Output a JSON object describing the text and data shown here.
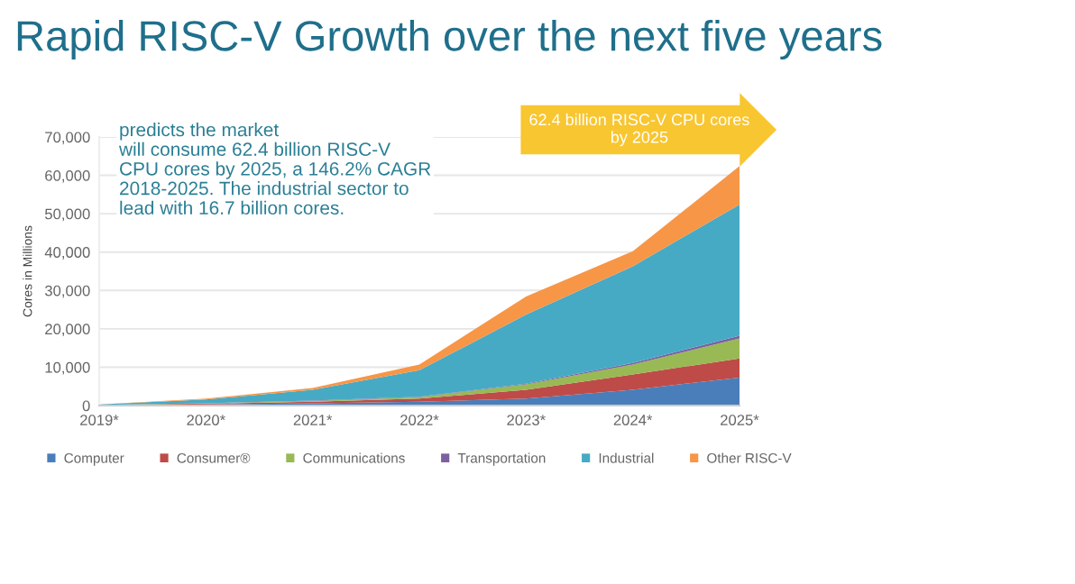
{
  "chart_data": {
    "type": "area",
    "stacked": true,
    "title": "Rapid RISC-V Growth over the next five years",
    "ylabel": "Cores in Millions",
    "categories": [
      "2019*",
      "2020*",
      "2021*",
      "2022*",
      "2023*",
      "2024*",
      "2025*"
    ],
    "series": [
      {
        "name": "Computer",
        "color": "#4a7ebb",
        "values": [
          100,
          300,
          600,
          1000,
          1800,
          4100,
          7300
        ]
      },
      {
        "name": "Consumer®",
        "color": "#be4b48",
        "values": [
          0,
          200,
          400,
          800,
          2300,
          4000,
          5000
        ]
      },
      {
        "name": "Communications",
        "color": "#98b954",
        "values": [
          100,
          100,
          200,
          400,
          1400,
          2600,
          5200
        ]
      },
      {
        "name": "Transportation",
        "color": "#7d60a0",
        "values": [
          0,
          0,
          100,
          100,
          200,
          400,
          700
        ]
      },
      {
        "name": "Industrial",
        "color": "#46aac5",
        "values": [
          100,
          1000,
          2800,
          6900,
          18000,
          25200,
          34200
        ]
      },
      {
        "name": "Other RISC-V",
        "color": "#f79646",
        "values": [
          0,
          200,
          500,
          1500,
          4700,
          3900,
          10000
        ]
      }
    ],
    "ylim": [
      0,
      70000
    ],
    "yticks": [
      {
        "value": 0,
        "label": "0"
      },
      {
        "value": 10000,
        "label": "10,000"
      },
      {
        "value": 20000,
        "label": "20,000"
      },
      {
        "value": 30000,
        "label": "30,000"
      },
      {
        "value": 40000,
        "label": "40,000"
      },
      {
        "value": 50000,
        "label": "50,000"
      },
      {
        "value": 60000,
        "label": "60,000"
      },
      {
        "value": 70000,
        "label": "70,000"
      }
    ],
    "grid": "y",
    "legend": "bottom",
    "annotations": [
      "predicts the market\nwill consume 62.4 billion RISC-V\nCPU cores by 2025, a 146.2% CAGR\n2018-2025. The industrial sector to\nlead with 16.7 billion cores.",
      {
        "text": "62.4 billion RISC-V CPU cores\nby 2025",
        "x": "2025*",
        "y": 62400
      }
    ]
  }
}
